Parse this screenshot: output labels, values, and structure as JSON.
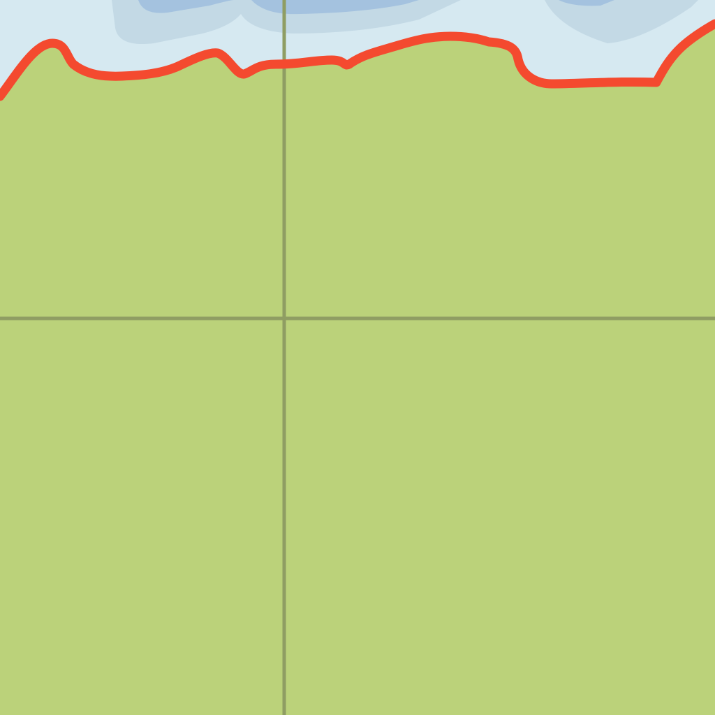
{
  "colors": {
    "water": "#d6e9f1",
    "water_shallow": "#c3d9e5",
    "water_deep": "#a4c2df",
    "land": "#bbd27a",
    "boundary": "#f44a2f",
    "grid": "#8f9d63"
  },
  "layers": {
    "water": "water",
    "land": "land",
    "boundary": "boundary-line",
    "graticule": "graticule-lines"
  }
}
